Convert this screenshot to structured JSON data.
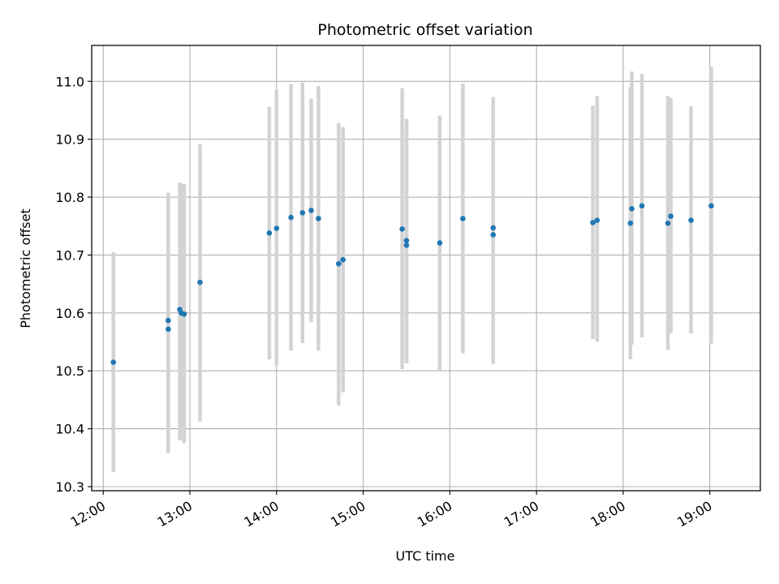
{
  "chart_data": {
    "type": "scatter",
    "title": "Photometric offset variation",
    "xlabel": "UTC time",
    "ylabel": "Photometric offset",
    "xlim": [
      "11:52",
      "19:35"
    ],
    "ylim": [
      10.293,
      11.062
    ],
    "grid": true,
    "x_ticks": [
      "12:00",
      "13:00",
      "14:00",
      "15:00",
      "16:00",
      "17:00",
      "18:00",
      "19:00"
    ],
    "y_ticks": [
      10.3,
      10.4,
      10.5,
      10.6,
      10.7,
      10.8,
      10.9,
      11.0
    ],
    "colors": {
      "marker": "#1f77b4",
      "errorbar": "#d3d3d3",
      "grid": "#b0b0b0"
    },
    "series": [
      {
        "x": [
          "12:07",
          "12:45",
          "12:45",
          "12:53",
          "12:54",
          "12:56",
          "13:07",
          "13:55",
          "14:00",
          "14:10",
          "14:18",
          "14:24",
          "14:29",
          "14:43",
          "14:46",
          "15:27",
          "15:30",
          "15:30",
          "15:53",
          "16:09",
          "16:30",
          "16:30",
          "17:39",
          "17:42",
          "18:05",
          "18:06",
          "18:13",
          "18:31",
          "18:33",
          "18:47",
          "19:01"
        ],
        "y": [
          10.515,
          10.572,
          10.587,
          10.606,
          10.6,
          10.598,
          10.653,
          10.738,
          10.746,
          10.765,
          10.773,
          10.777,
          10.763,
          10.685,
          10.692,
          10.745,
          10.717,
          10.725,
          10.721,
          10.763,
          10.735,
          10.747,
          10.756,
          10.76,
          10.755,
          10.78,
          10.785,
          10.755,
          10.767,
          10.76,
          10.785
        ],
        "y_lower": [
          10.325,
          10.358,
          10.362,
          10.38,
          10.382,
          10.375,
          10.412,
          10.52,
          10.51,
          10.535,
          10.548,
          10.584,
          10.535,
          10.44,
          10.463,
          10.503,
          10.513,
          10.515,
          10.5,
          10.53,
          10.512,
          10.52,
          10.555,
          10.55,
          10.52,
          10.545,
          10.558,
          10.536,
          10.565,
          10.565,
          10.547
        ],
        "y_upper": [
          10.705,
          10.787,
          10.808,
          10.825,
          10.823,
          10.823,
          10.892,
          10.956,
          10.985,
          10.995,
          10.998,
          10.97,
          10.992,
          10.928,
          10.921,
          10.988,
          10.921,
          10.935,
          10.941,
          10.996,
          10.958,
          10.973,
          10.958,
          10.975,
          10.99,
          11.017,
          11.013,
          10.975,
          10.971,
          10.957,
          11.025
        ]
      }
    ]
  }
}
